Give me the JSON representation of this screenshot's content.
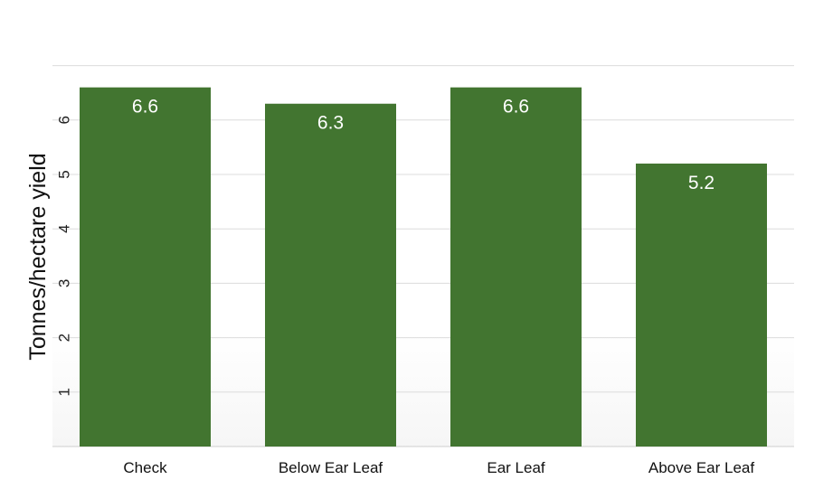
{
  "chart_data": {
    "type": "bar",
    "categories": [
      "Check",
      "Below Ear Leaf",
      "Ear Leaf",
      "Above Ear Leaf"
    ],
    "values": [
      6.6,
      6.3,
      6.6,
      5.2
    ],
    "data_labels": [
      "6.6",
      "6.3",
      "6.6",
      "5.2"
    ],
    "ylabel": "Tonnes/hectare yield",
    "xlabel": "",
    "ylim": [
      0,
      7
    ],
    "yticks": [
      1,
      2,
      3,
      4,
      5,
      6
    ],
    "grid": true,
    "bar_color": "#427530",
    "label_color": "#ffffff"
  }
}
